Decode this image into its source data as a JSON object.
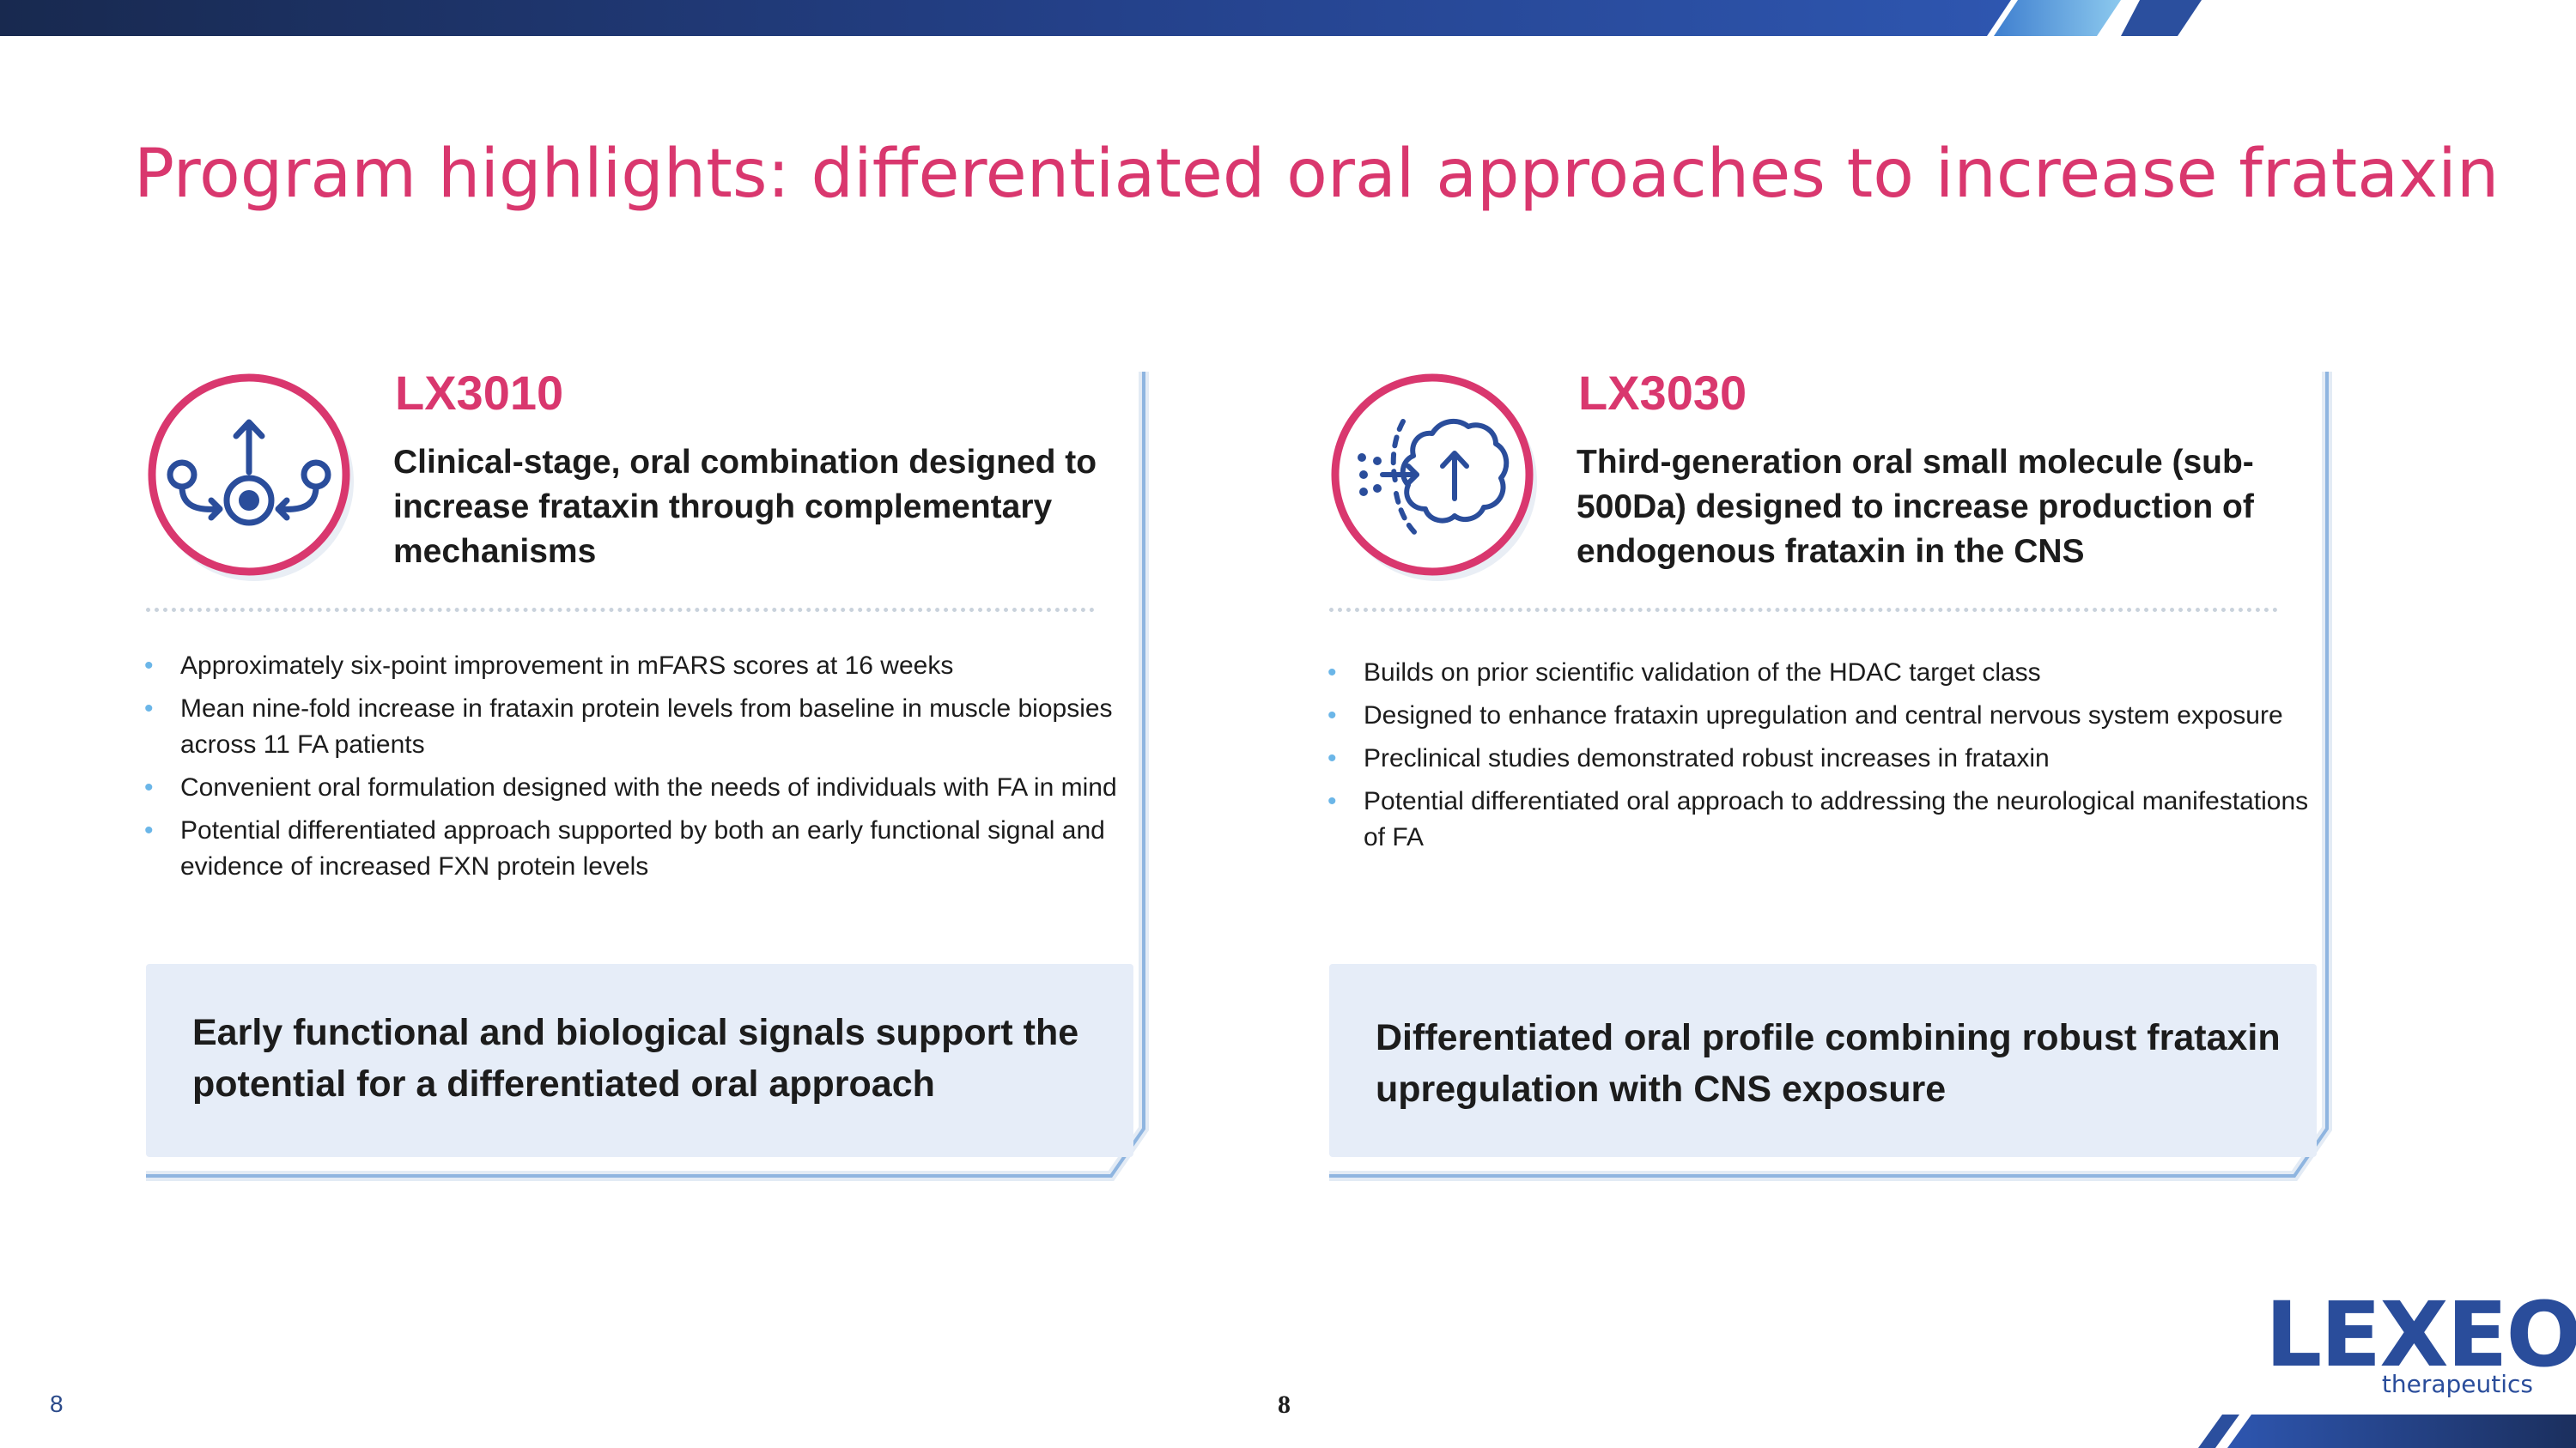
{
  "slide": {
    "title": "Program highlights: differentiated oral approaches to increase frataxin",
    "page_number_left": "8",
    "page_number_center": "8"
  },
  "colors": {
    "accent_pink": "#d9376e",
    "navy": "#1b2f5e",
    "blue": "#2a4d9b",
    "light_blue": "#6bb6e8",
    "callout_bg": "#e6edf8",
    "frame_line": "#8fb5e0"
  },
  "cards": [
    {
      "code": "LX3010",
      "icon": "pathways-icon",
      "description": "Clinical-stage, oral combination designed to increase frataxin through complementary mechanisms",
      "bullets": [
        "Approximately six-point improvement in mFARS scores at 16 weeks",
        "Mean nine-fold increase in frataxin protein levels from baseline in muscle biopsies across 11 FA patients",
        "Convenient oral formulation designed with the needs of individuals with FA in mind",
        "Potential differentiated approach supported by both an early functional signal and evidence of increased FXN protein levels"
      ],
      "callout": "Early functional and biological signals support the potential for a differentiated oral approach"
    },
    {
      "code": "LX3030",
      "icon": "brain-icon",
      "description": "Third-generation oral small molecule (sub-500Da) designed to increase production of endogenous frataxin in the CNS",
      "bullets": [
        "Builds on prior scientific validation of the HDAC target class",
        "Designed to enhance frataxin upregulation and central nervous system exposure",
        "Preclinical studies demonstrated robust increases in frataxin",
        "Potential differentiated oral approach to addressing the neurological manifestations of FA"
      ],
      "callout": "Differentiated oral profile combining robust frataxin upregulation with CNS exposure"
    }
  ],
  "logo": {
    "word": "LEXEO",
    "sub": "therapeutics"
  }
}
